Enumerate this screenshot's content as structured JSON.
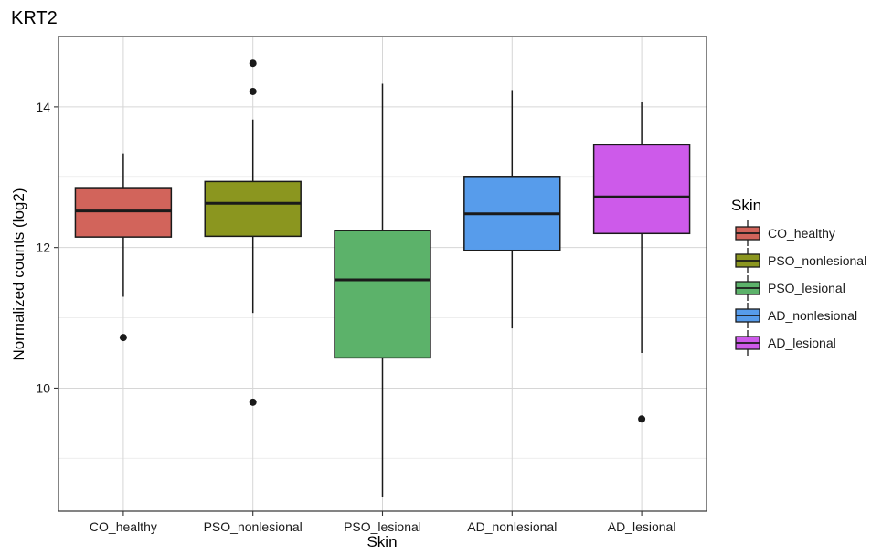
{
  "chart_data": {
    "type": "box",
    "title": "KRT2",
    "xlabel": "Skin",
    "ylabel": "Normalized counts (log2)",
    "ylim": [
      8.25,
      15.0
    ],
    "yticks": [
      10,
      12,
      14
    ],
    "minor_gridlines": [
      9,
      11,
      13
    ],
    "grid": true,
    "legend": {
      "title": "Skin",
      "position": "right"
    },
    "categories": [
      "CO_healthy",
      "PSO_nonlesional",
      "PSO_lesional",
      "AD_nonlesional",
      "AD_lesional"
    ],
    "series": [
      {
        "name": "CO_healthy",
        "color": "#D2645B",
        "whisker_low": 11.3,
        "q1": 12.15,
        "median": 12.52,
        "q3": 12.84,
        "whisker_high": 13.34,
        "outliers": [
          10.72
        ]
      },
      {
        "name": "PSO_nonlesional",
        "color": "#8B961F",
        "whisker_low": 11.07,
        "q1": 12.16,
        "median": 12.63,
        "q3": 12.94,
        "whisker_high": 13.82,
        "outliers": [
          14.62,
          14.22,
          9.8
        ]
      },
      {
        "name": "PSO_lesional",
        "color": "#5CB26A",
        "whisker_low": 8.45,
        "q1": 10.43,
        "median": 11.54,
        "q3": 12.24,
        "whisker_high": 14.33,
        "outliers": []
      },
      {
        "name": "AD_nonlesional",
        "color": "#579CEB",
        "whisker_low": 10.85,
        "q1": 11.96,
        "median": 12.48,
        "q3": 13.0,
        "whisker_high": 14.24,
        "outliers": []
      },
      {
        "name": "AD_lesional",
        "color": "#CD5AEA",
        "whisker_low": 10.5,
        "q1": 12.2,
        "median": 12.72,
        "q3": 13.46,
        "whisker_high": 14.07,
        "outliers": [
          9.56
        ]
      }
    ]
  }
}
